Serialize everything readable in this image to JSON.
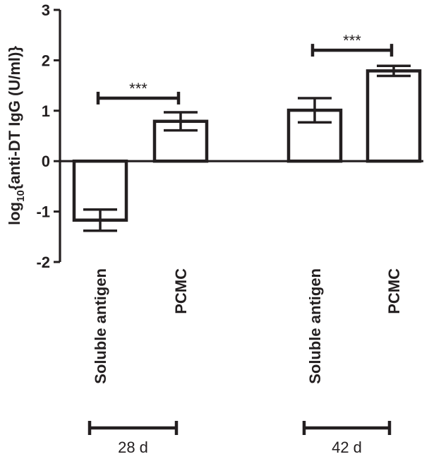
{
  "chart_data": {
    "type": "bar",
    "title": "",
    "ylabel": {
      "main": "log",
      "sub": "10",
      "rest": "{anti-DT IgG (U/ml)}"
    },
    "ylim": [
      -2,
      3
    ],
    "yticks": [
      "-2",
      "-1",
      "0",
      "1",
      "2",
      "3"
    ],
    "categories": [
      "Soluble antigen",
      "PCMC",
      "Soluble antigen",
      "PCMC"
    ],
    "values": [
      -1.17,
      0.79,
      1.01,
      1.79
    ],
    "errors": [
      0.21,
      0.18,
      0.24,
      0.1
    ],
    "groups": [
      {
        "label": "28 d",
        "bars": [
          0,
          1
        ]
      },
      {
        "label": "42 d",
        "bars": [
          2,
          3
        ]
      }
    ],
    "significance": [
      {
        "label": "***",
        "bars": [
          0,
          1
        ],
        "y": 1.25
      },
      {
        "label": "***",
        "bars": [
          2,
          3
        ],
        "y": 2.2
      }
    ],
    "colors": {
      "bar_fill": "#ffffff",
      "stroke": "#231f20"
    }
  }
}
